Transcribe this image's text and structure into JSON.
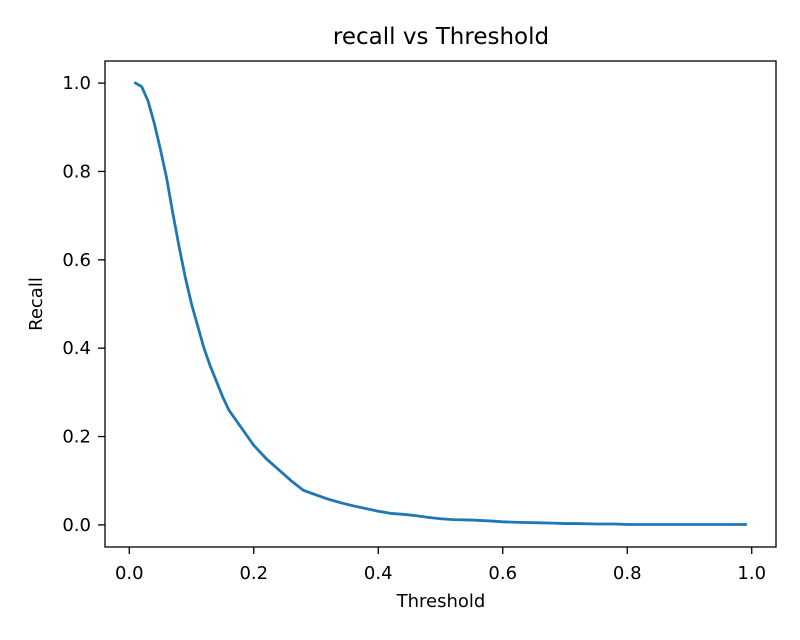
{
  "chart_data": {
    "type": "line",
    "title": "recall vs Threshold",
    "xlabel": "Threshold",
    "ylabel": "Recall",
    "xlim": [
      -0.039,
      1.039
    ],
    "ylim": [
      -0.05,
      1.05
    ],
    "grid": false,
    "x_ticks": [
      "0.0",
      "0.2",
      "0.4",
      "0.6",
      "0.8",
      "1.0"
    ],
    "y_ticks": [
      "0.0",
      "0.2",
      "0.4",
      "0.6",
      "0.8",
      "1.0"
    ],
    "series": [
      {
        "color": "#1f77b4",
        "x": [
          0.01,
          0.02,
          0.03,
          0.04,
          0.05,
          0.06,
          0.07,
          0.08,
          0.09,
          0.1,
          0.11,
          0.12,
          0.13,
          0.14,
          0.15,
          0.16,
          0.18,
          0.2,
          0.22,
          0.24,
          0.26,
          0.28,
          0.3,
          0.32,
          0.34,
          0.36,
          0.38,
          0.4,
          0.42,
          0.44,
          0.46,
          0.48,
          0.5,
          0.52,
          0.55,
          0.58,
          0.6,
          0.62,
          0.65,
          0.68,
          0.7,
          0.72,
          0.75,
          0.78,
          0.8,
          0.85,
          0.9,
          0.95,
          0.99
        ],
        "y": [
          1.0,
          0.992,
          0.96,
          0.91,
          0.85,
          0.785,
          0.705,
          0.63,
          0.56,
          0.5,
          0.45,
          0.4,
          0.36,
          0.325,
          0.29,
          0.26,
          0.22,
          0.18,
          0.15,
          0.125,
          0.1,
          0.078,
          0.068,
          0.058,
          0.05,
          0.043,
          0.037,
          0.031,
          0.026,
          0.024,
          0.021,
          0.017,
          0.014,
          0.012,
          0.011,
          0.009,
          0.007,
          0.006,
          0.005,
          0.004,
          0.003,
          0.003,
          0.002,
          0.002,
          0.001,
          0.001,
          0.001,
          0.001,
          0.001
        ]
      }
    ]
  }
}
